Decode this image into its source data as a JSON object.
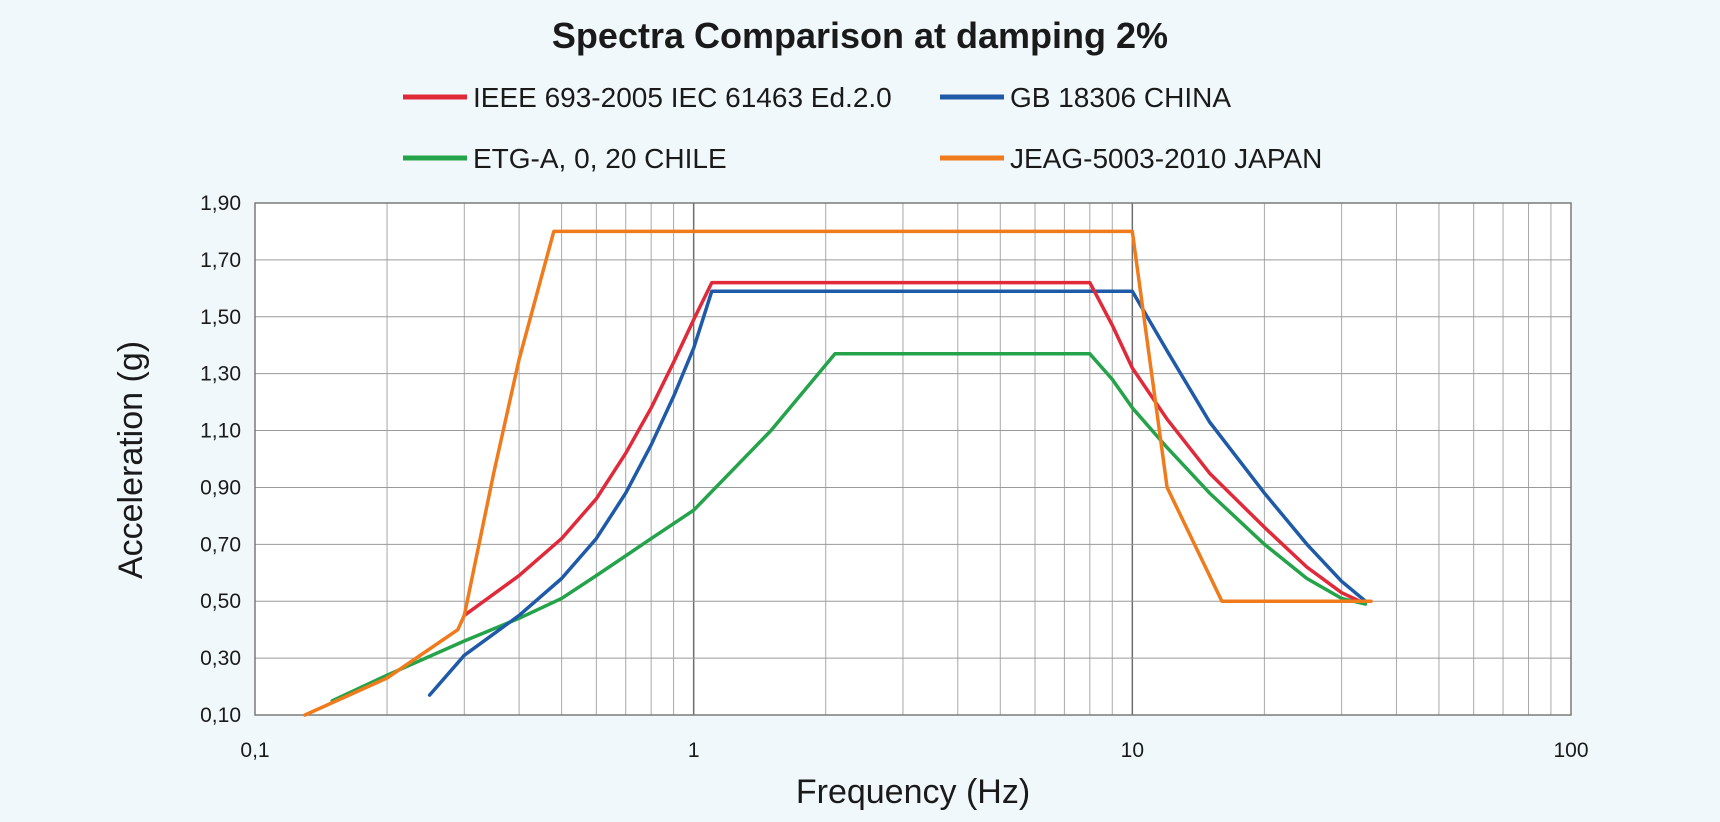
{
  "chart_data": {
    "type": "line",
    "title": "Spectra Comparison at damping 2%",
    "xlabel": "Frequency (Hz)",
    "ylabel": "Acceleration (g)",
    "x_scale": "log",
    "xlim": [
      0.1,
      100
    ],
    "ylim": [
      0.1,
      1.9
    ],
    "grid": true,
    "legend_position": "top",
    "x_ticks": [
      "0,1",
      "1",
      "10",
      "100"
    ],
    "y_ticks": [
      "0,10",
      "0,30",
      "0,50",
      "0,70",
      "0,90",
      "1,10",
      "1,30",
      "1,50",
      "1,70",
      "1,90"
    ],
    "series": [
      {
        "name": "IEEE 693-2005 IEC 61463 Ed.2.0",
        "color": "#e02a3a",
        "x": [
          0.3,
          0.4,
          0.5,
          0.6,
          0.7,
          0.8,
          0.9,
          1.0,
          1.1,
          8.0,
          9.0,
          10.0,
          12.0,
          15.0,
          20.0,
          25.0,
          30.0,
          33.0
        ],
        "y": [
          0.45,
          0.59,
          0.72,
          0.86,
          1.02,
          1.18,
          1.34,
          1.49,
          1.62,
          1.62,
          1.47,
          1.32,
          1.14,
          0.95,
          0.76,
          0.62,
          0.53,
          0.5
        ]
      },
      {
        "name": "GB 18306 CHINA",
        "color": "#1e5aa8",
        "x": [
          0.25,
          0.3,
          0.4,
          0.5,
          0.6,
          0.7,
          0.8,
          0.9,
          1.0,
          1.1,
          10.0,
          12.0,
          15.0,
          20.0,
          25.0,
          30.0,
          34.0
        ],
        "y": [
          0.17,
          0.31,
          0.45,
          0.58,
          0.72,
          0.88,
          1.05,
          1.22,
          1.39,
          1.59,
          1.59,
          1.38,
          1.13,
          0.88,
          0.7,
          0.57,
          0.5
        ]
      },
      {
        "name": "ETG-A, 0, 20 CHILE",
        "color": "#25a34a",
        "x": [
          0.15,
          0.2,
          0.3,
          0.4,
          0.5,
          0.6,
          0.8,
          1.0,
          1.5,
          2.1,
          8.0,
          9.0,
          10.0,
          12.0,
          15.0,
          20.0,
          25.0,
          30.0,
          34.0
        ],
        "y": [
          0.15,
          0.24,
          0.36,
          0.44,
          0.51,
          0.59,
          0.72,
          0.82,
          1.1,
          1.37,
          1.37,
          1.28,
          1.18,
          1.04,
          0.88,
          0.7,
          0.58,
          0.51,
          0.49
        ]
      },
      {
        "name": "JEAG-5003-2010 JAPAN",
        "color": "#f07b1c",
        "x": [
          0.13,
          0.2,
          0.29,
          0.3,
          0.35,
          0.4,
          0.48,
          10.0,
          12.0,
          16.0,
          35.0
        ],
        "y": [
          0.1,
          0.23,
          0.4,
          0.45,
          0.95,
          1.35,
          1.8,
          1.8,
          0.9,
          0.5,
          0.5
        ]
      }
    ]
  }
}
